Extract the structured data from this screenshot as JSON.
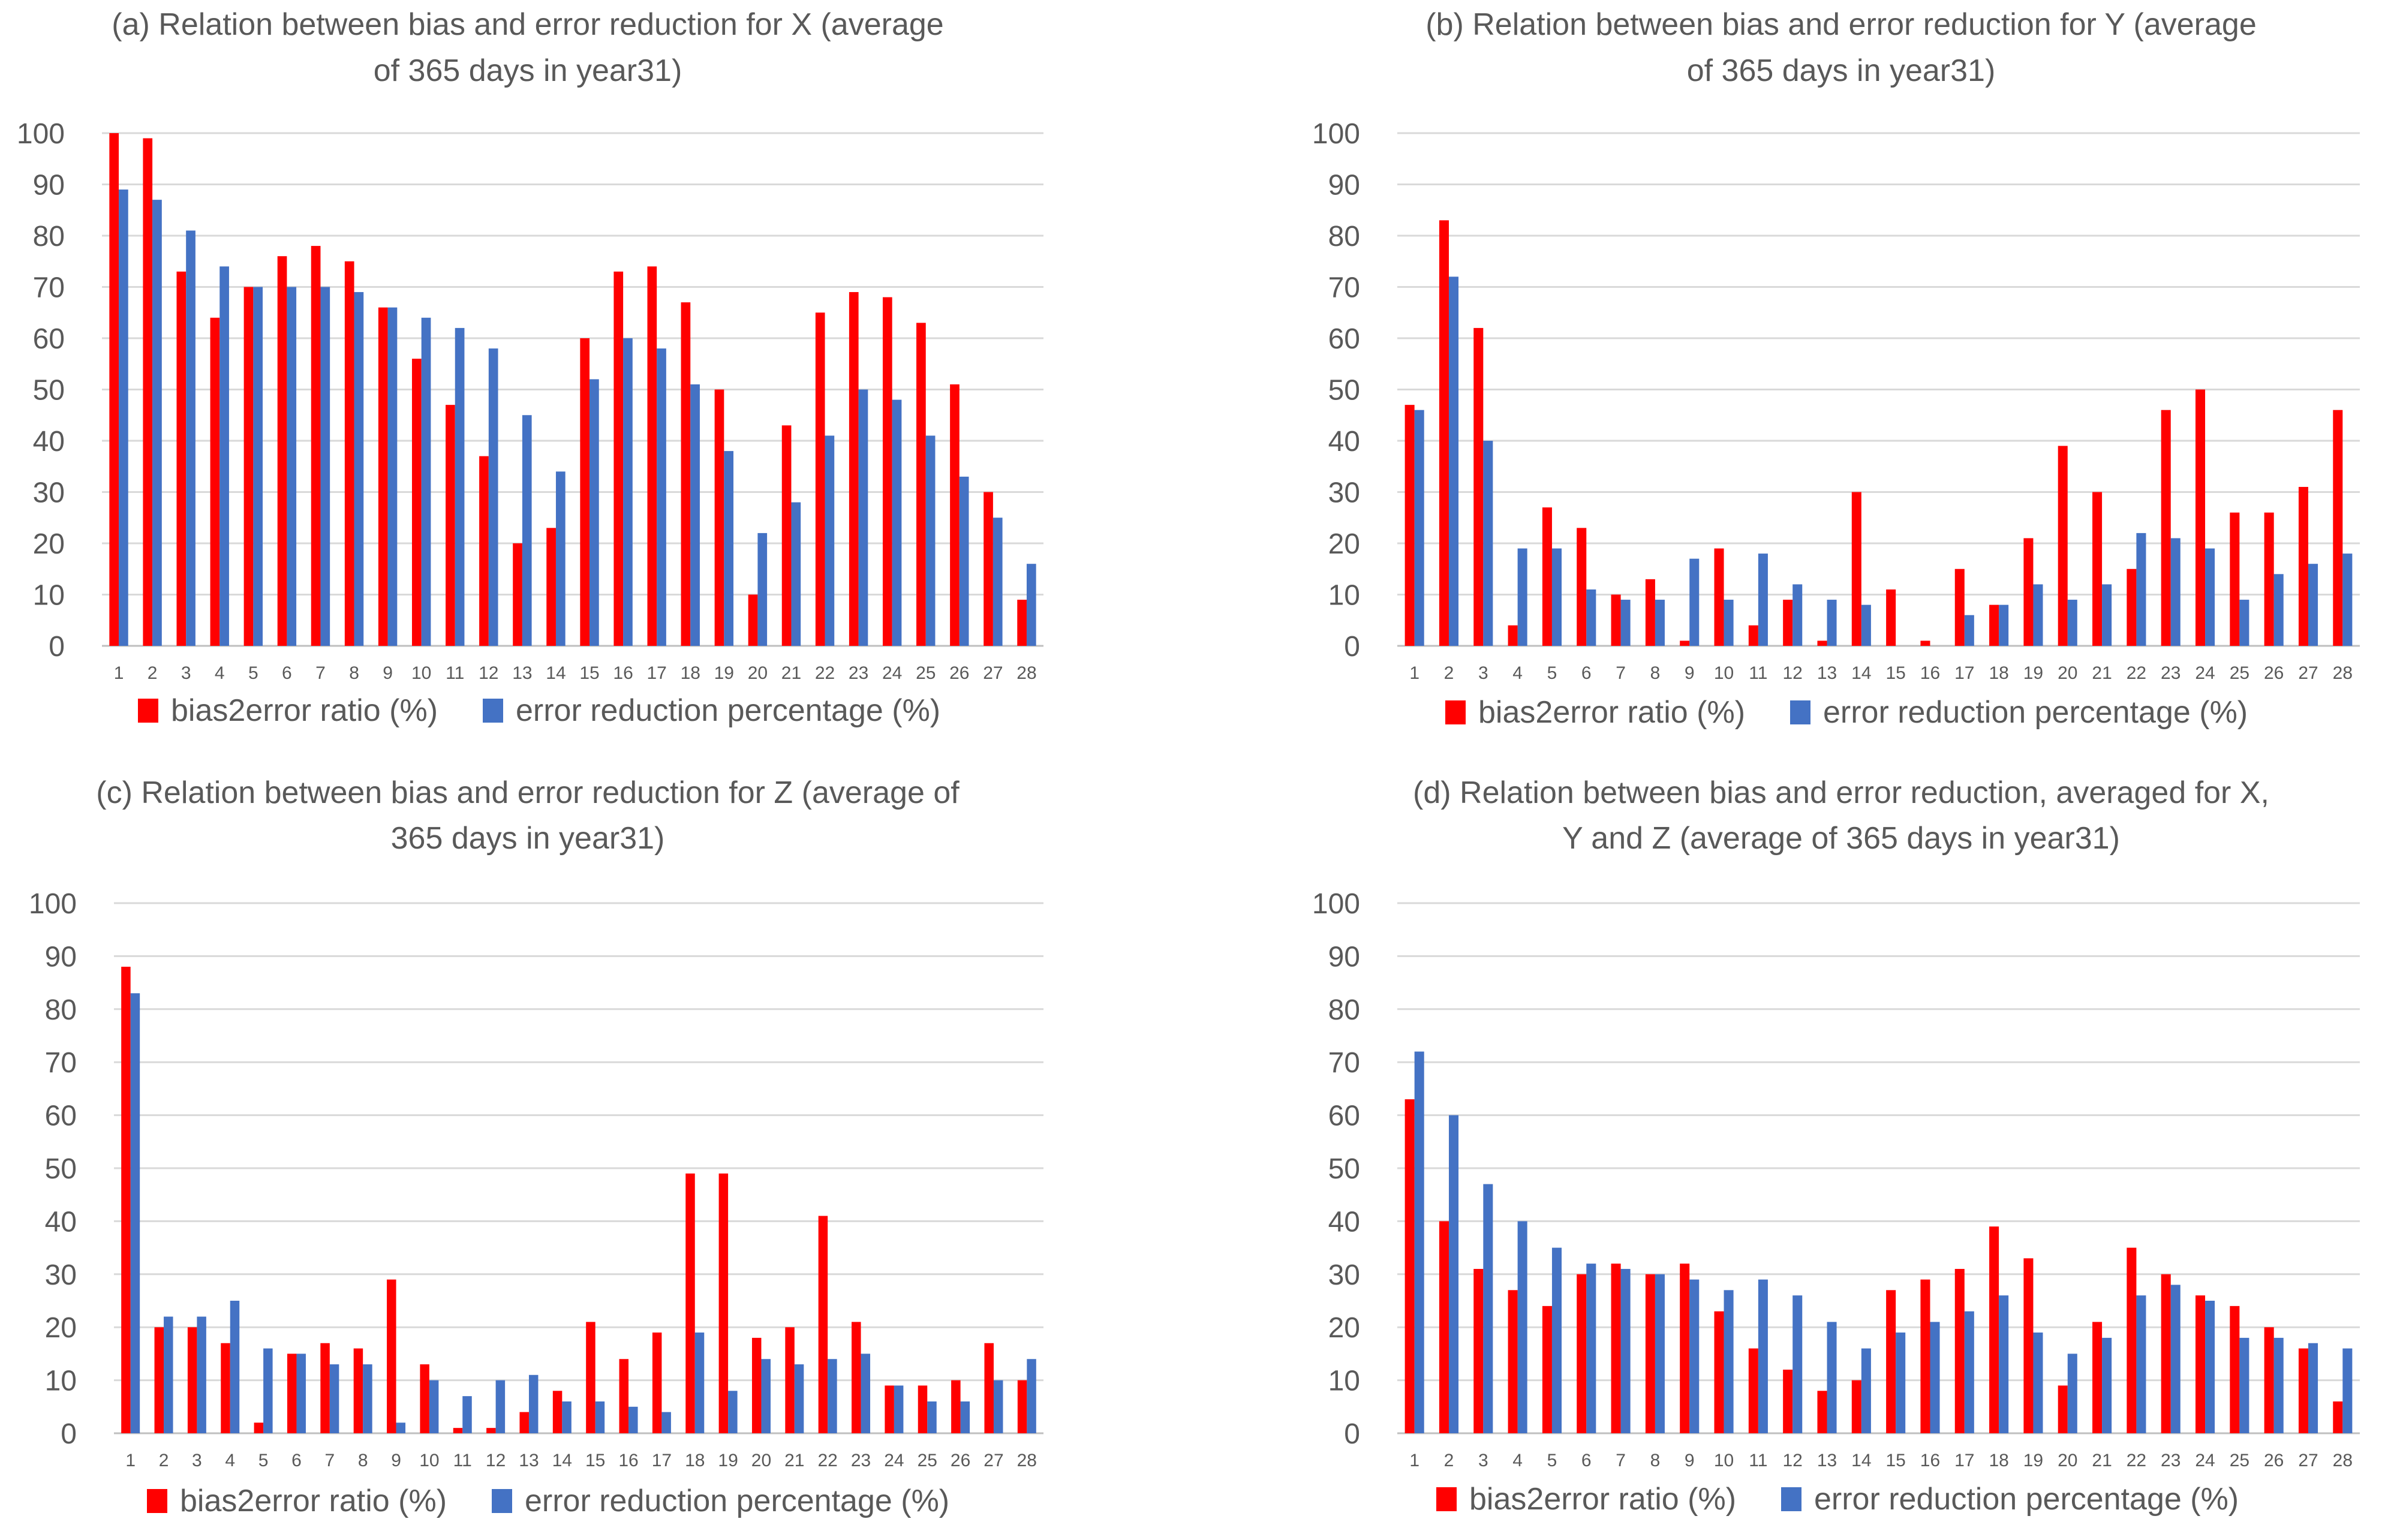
{
  "colors": {
    "series1": "#ff0000",
    "series2": "#4472c4",
    "grid": "#d9d9d9",
    "text": "#595959"
  },
  "chart_data": [
    {
      "id": "a",
      "type": "bar",
      "title_lines": [
        "(a) Relation between bias and error reduction for X (average",
        "of 365 days in year31)"
      ],
      "categories": [
        "1",
        "2",
        "3",
        "4",
        "5",
        "6",
        "7",
        "8",
        "9",
        "10",
        "11",
        "12",
        "13",
        "14",
        "15",
        "16",
        "17",
        "18",
        "19",
        "20",
        "21",
        "22",
        "23",
        "24",
        "25",
        "26",
        "27",
        "28"
      ],
      "ylim": [
        0,
        100
      ],
      "yticks": [
        "0",
        "10",
        "20",
        "30",
        "40",
        "50",
        "60",
        "70",
        "80",
        "90",
        "100"
      ],
      "series": [
        {
          "name": "bias2error ratio (%)",
          "values": [
            100,
            99,
            73,
            64,
            70,
            76,
            78,
            75,
            66,
            56,
            47,
            37,
            20,
            23,
            60,
            73,
            74,
            67,
            50,
            10,
            43,
            65,
            69,
            68,
            63,
            51,
            30,
            9
          ]
        },
        {
          "name": "error reduction percentage (%)",
          "values": [
            89,
            87,
            81,
            74,
            70,
            70,
            70,
            69,
            66,
            64,
            62,
            58,
            45,
            34,
            52,
            60,
            58,
            51,
            38,
            22,
            28,
            41,
            50,
            48,
            41,
            33,
            25,
            16
          ]
        }
      ]
    },
    {
      "id": "b",
      "type": "bar",
      "title_lines": [
        "(b) Relation between bias and error reduction for Y (average",
        "of 365 days in year31)"
      ],
      "categories": [
        "1",
        "2",
        "3",
        "4",
        "5",
        "6",
        "7",
        "8",
        "9",
        "10",
        "11",
        "12",
        "13",
        "14",
        "15",
        "16",
        "17",
        "18",
        "19",
        "20",
        "21",
        "22",
        "23",
        "24",
        "25",
        "26",
        "27",
        "28"
      ],
      "ylim": [
        0,
        100
      ],
      "yticks": [
        "0",
        "10",
        "20",
        "30",
        "40",
        "50",
        "60",
        "70",
        "80",
        "90",
        "100"
      ],
      "series": [
        {
          "name": "bias2error ratio (%)",
          "values": [
            47,
            83,
            62,
            4,
            27,
            23,
            10,
            13,
            1,
            19,
            4,
            9,
            1,
            30,
            11,
            1,
            15,
            8,
            21,
            39,
            30,
            15,
            46,
            50,
            26,
            26,
            31,
            46
          ]
        },
        {
          "name": "error reduction percentage (%)",
          "values": [
            46,
            72,
            40,
            19,
            19,
            11,
            9,
            9,
            17,
            9,
            18,
            12,
            9,
            8,
            0,
            0,
            6,
            8,
            12,
            9,
            12,
            22,
            21,
            19,
            9,
            14,
            16,
            18
          ]
        }
      ]
    },
    {
      "id": "c",
      "type": "bar",
      "title_lines": [
        "(c) Relation between bias and error reduction for Z (average of",
        "365 days in year31)"
      ],
      "categories": [
        "1",
        "2",
        "3",
        "4",
        "5",
        "6",
        "7",
        "8",
        "9",
        "10",
        "11",
        "12",
        "13",
        "14",
        "15",
        "16",
        "17",
        "18",
        "19",
        "20",
        "21",
        "22",
        "23",
        "24",
        "25",
        "26",
        "27",
        "28"
      ],
      "ylim": [
        0,
        100
      ],
      "yticks": [
        "0",
        "10",
        "20",
        "30",
        "40",
        "50",
        "60",
        "70",
        "80",
        "90",
        "100"
      ],
      "series": [
        {
          "name": "bias2error ratio (%)",
          "values": [
            88,
            20,
            20,
            17,
            2,
            15,
            17,
            16,
            29,
            13,
            1,
            1,
            4,
            8,
            21,
            14,
            19,
            49,
            49,
            18,
            20,
            41,
            21,
            9,
            9,
            10,
            17,
            10
          ]
        },
        {
          "name": "error reduction percentage (%)",
          "values": [
            83,
            22,
            22,
            25,
            16,
            15,
            13,
            13,
            2,
            10,
            7,
            10,
            11,
            6,
            6,
            5,
            4,
            19,
            8,
            14,
            13,
            14,
            15,
            9,
            6,
            6,
            10,
            14
          ]
        }
      ]
    },
    {
      "id": "d",
      "type": "bar",
      "title_lines": [
        "(d) Relation between bias and error reduction, averaged for X,",
        "Y and Z (average of 365 days in year31)"
      ],
      "categories": [
        "1",
        "2",
        "3",
        "4",
        "5",
        "6",
        "7",
        "8",
        "9",
        "10",
        "11",
        "12",
        "13",
        "14",
        "15",
        "16",
        "17",
        "18",
        "19",
        "20",
        "21",
        "22",
        "23",
        "24",
        "25",
        "26",
        "27",
        "28"
      ],
      "ylim": [
        0,
        100
      ],
      "yticks": [
        "0",
        "10",
        "20",
        "30",
        "40",
        "50",
        "60",
        "70",
        "80",
        "90",
        "100"
      ],
      "series": [
        {
          "name": "bias2error ratio (%)",
          "values": [
            63,
            40,
            31,
            27,
            24,
            30,
            32,
            30,
            32,
            23,
            16,
            12,
            8,
            10,
            27,
            29,
            31,
            39,
            33,
            9,
            21,
            35,
            30,
            26,
            24,
            20,
            16,
            6
          ]
        },
        {
          "name": "error reduction percentage (%)",
          "values": [
            72,
            60,
            47,
            40,
            35,
            32,
            31,
            30,
            29,
            27,
            29,
            26,
            21,
            16,
            19,
            21,
            23,
            26,
            19,
            15,
            18,
            26,
            28,
            25,
            18,
            18,
            17,
            16
          ]
        }
      ]
    }
  ]
}
